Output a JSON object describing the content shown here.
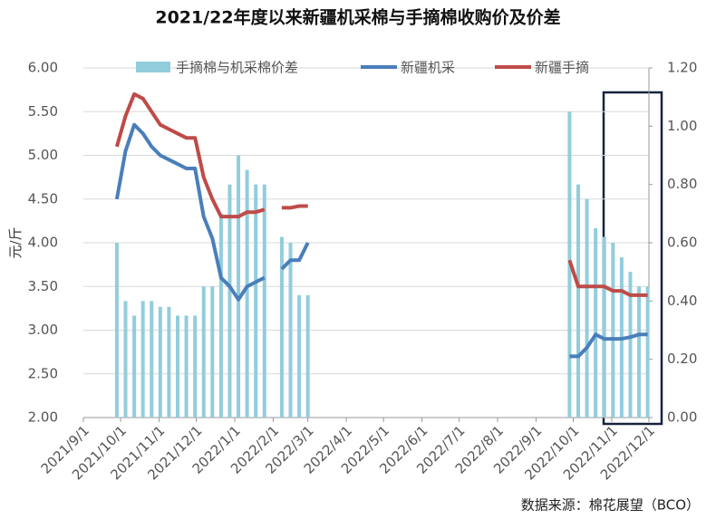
{
  "chart_data": {
    "type": "bar_line_dual",
    "title": "2021/22年度以来新疆机采棉与手摘棉收购价及价差",
    "y_label": "元/斤",
    "source": "数据来源：棉花展望（BCO）",
    "x": [
      "2021/9/28",
      "2021/10/5",
      "2021/10/12",
      "2021/10/19",
      "2021/10/26",
      "2021/11/2",
      "2021/11/9",
      "2021/11/16",
      "2021/11/23",
      "2021/11/30",
      "2021/12/7",
      "2021/12/14",
      "2021/12/21",
      "2021/12/28",
      "2022/1/4",
      "2022/1/11",
      "2022/1/18",
      "2022/1/25",
      "2022/2/1",
      "2022/2/8",
      "2022/2/15",
      "2022/2/22",
      "2022/3/1",
      "2022/6/1",
      "2022/9/28",
      "2022/10/5",
      "2022/10/12",
      "2022/10/19",
      "2022/10/26",
      "2022/11/2",
      "2022/11/9",
      "2022/11/16",
      "2022/11/23",
      "2022/11/30"
    ],
    "xlim": [
      "2021/9/1",
      "2022/12/1"
    ],
    "xticks": [
      "2021/9/1",
      "2021/10/1",
      "2021/11/1",
      "2021/12/1",
      "2022/1/1",
      "2022/2/1",
      "2022/3/1",
      "2022/4/1",
      "2022/5/1",
      "2022/6/1",
      "2022/7/1",
      "2022/8/1",
      "2022/9/1",
      "2022/10/1",
      "2022/11/1",
      "2022/12/1"
    ],
    "series": [
      {
        "name": "手摘棉与机采棉价差",
        "kind": "bar",
        "axis": "y2",
        "color": "#92cddc",
        "values": [
          0.6,
          0.4,
          0.35,
          0.4,
          0.4,
          0.38,
          0.38,
          0.35,
          0.35,
          0.35,
          0.45,
          0.45,
          0.7,
          0.8,
          0.9,
          0.85,
          0.8,
          0.8,
          null,
          0.62,
          0.6,
          0.42,
          0.42,
          null,
          1.05,
          0.8,
          0.75,
          0.65,
          0.62,
          0.6,
          0.55,
          0.5,
          0.45,
          0.45
        ]
      },
      {
        "name": "新疆机采",
        "kind": "line",
        "color": "#4a7ebb",
        "values": [
          4.5,
          5.05,
          5.35,
          5.25,
          5.1,
          5.0,
          4.95,
          4.9,
          4.85,
          4.85,
          4.3,
          4.05,
          3.6,
          3.5,
          3.35,
          3.5,
          3.55,
          3.6,
          null,
          3.7,
          3.8,
          3.8,
          4.0,
          null,
          2.7,
          2.7,
          2.8,
          2.95,
          2.9,
          2.9,
          2.9,
          2.92,
          2.95,
          2.95
        ]
      },
      {
        "name": "新疆手摘",
        "kind": "line",
        "color": "#be4b48",
        "values": [
          5.1,
          5.45,
          5.7,
          5.65,
          5.5,
          5.35,
          5.3,
          5.25,
          5.2,
          5.2,
          4.75,
          4.5,
          4.3,
          4.3,
          4.3,
          4.35,
          4.35,
          4.38,
          null,
          4.4,
          4.4,
          4.42,
          4.42,
          null,
          3.8,
          3.5,
          3.5,
          3.5,
          3.5,
          3.45,
          3.45,
          3.4,
          3.4,
          3.4
        ]
      }
    ],
    "ylim": [
      2,
      6
    ],
    "yticks": [
      {
        "value": 2,
        "label": "2.00"
      },
      {
        "value": 2.5,
        "label": "2.50"
      },
      {
        "value": 3,
        "label": "3.00"
      },
      {
        "value": 3.5,
        "label": "3.50"
      },
      {
        "value": 4,
        "label": "4.00"
      },
      {
        "value": 4.5,
        "label": "4.50"
      },
      {
        "value": 5,
        "label": "5.00"
      },
      {
        "value": 5.5,
        "label": "5.50"
      },
      {
        "value": 6,
        "label": "6.00"
      }
    ],
    "y2lim": [
      0,
      1.2
    ],
    "y2ticks": [
      {
        "value": 0,
        "label": "0.00"
      },
      {
        "value": 0.2,
        "label": "0.20"
      },
      {
        "value": 0.4,
        "label": "0.40"
      },
      {
        "value": 0.6,
        "label": "0.60"
      },
      {
        "value": 0.8,
        "label": "0.80"
      },
      {
        "value": 1,
        "label": "1.00"
      },
      {
        "value": 1.2,
        "label": "1.20"
      }
    ],
    "grid": true
  }
}
